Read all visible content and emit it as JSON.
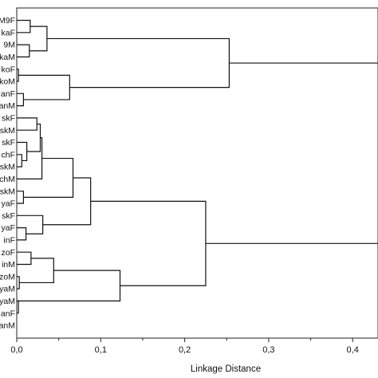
{
  "chart_data": {
    "type": "dendrogram",
    "orientation": "horizontal",
    "xlabel": "Linkage Distance",
    "xlim": [
      0,
      0.44
    ],
    "xticks": [
      0.0,
      0.1,
      0.2,
      0.3,
      0.4
    ],
    "xtick_labels": [
      "0,0",
      "0,1",
      "0,2",
      "0,3",
      "0,4"
    ],
    "grid": false,
    "leaves": [
      "M9F",
      "kaF",
      "9M",
      "kaM",
      "koF",
      "koM",
      "anF",
      "anM",
      "skF",
      "skM",
      "skF",
      "chF",
      "skM",
      "chM",
      "skM",
      "yaF",
      "skF",
      "yaF",
      "inF",
      "zoF",
      "inM",
      "zoM",
      "yaM",
      "yaM",
      "anF",
      "anM"
    ],
    "merges": [
      {
        "a": "L4",
        "b": "L5",
        "height": 0.002
      },
      {
        "a": "L11",
        "b": "L12",
        "height": 0.002
      },
      {
        "a": "L21",
        "b": "L22",
        "height": 0.003
      },
      {
        "a": "L10",
        "b": "N1",
        "height": 0.006
      },
      {
        "a": "L6",
        "b": "L7",
        "height": 0.008
      },
      {
        "a": "L14",
        "b": "L15",
        "height": 0.008
      },
      {
        "a": "L17",
        "b": "L18",
        "height": 0.011
      },
      {
        "a": "L2",
        "b": "L3",
        "height": 0.015
      },
      {
        "a": "L0",
        "b": "L1",
        "height": 0.016
      },
      {
        "a": "L19",
        "b": "L20",
        "height": 0.017
      },
      {
        "a": "L9",
        "b": "N3",
        "height": 0.012
      },
      {
        "a": "L8",
        "b": "N10",
        "height": 0.024
      },
      {
        "a": "N11",
        "b": "L13",
        "height": 0.028
      },
      {
        "a": "N8",
        "b": "N7",
        "height": 0.03
      },
      {
        "a": "L16",
        "b": "N6",
        "height": 0.031
      },
      {
        "a": "N4",
        "b": "N5",
        "height": 0.063
      },
      {
        "a": "N9",
        "b": "N2",
        "height": 0.04
      },
      {
        "a": "N12",
        "b": "N5b",
        "height": 0.063
      },
      {
        "a": "N15",
        "b": "N14",
        "height": 0.088
      },
      {
        "a": "L23",
        "b": "L24",
        "height": 0.12
      },
      {
        "a": "N16",
        "b": "N19",
        "height": 0.123
      },
      {
        "a": "N13",
        "b": "N15b",
        "height": 0.253
      },
      {
        "a": "N18",
        "b": "N20",
        "height": 0.225
      },
      {
        "a": "N21",
        "b": "N22",
        "height": 0.44
      }
    ]
  }
}
